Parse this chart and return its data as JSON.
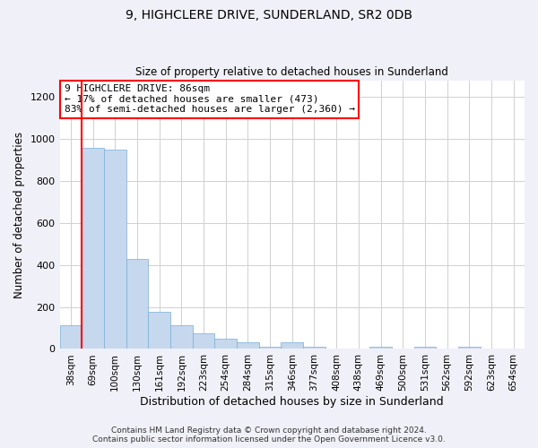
{
  "title1": "9, HIGHCLERE DRIVE, SUNDERLAND, SR2 0DB",
  "title2": "Size of property relative to detached houses in Sunderland",
  "xlabel": "Distribution of detached houses by size in Sunderland",
  "ylabel": "Number of detached properties",
  "categories": [
    "38sqm",
    "69sqm",
    "100sqm",
    "130sqm",
    "161sqm",
    "192sqm",
    "223sqm",
    "254sqm",
    "284sqm",
    "315sqm",
    "346sqm",
    "377sqm",
    "408sqm",
    "438sqm",
    "469sqm",
    "500sqm",
    "531sqm",
    "562sqm",
    "592sqm",
    "623sqm",
    "654sqm"
  ],
  "values": [
    115,
    960,
    950,
    430,
    175,
    115,
    75,
    50,
    30,
    10,
    30,
    10,
    0,
    0,
    10,
    0,
    10,
    0,
    10,
    0,
    0
  ],
  "bar_color": "#c5d8ee",
  "bar_edge_color": "#7aadd4",
  "vline_x": 0.5,
  "vline_color": "red",
  "annotation_text": "9 HIGHCLERE DRIVE: 86sqm\n← 17% of detached houses are smaller (473)\n83% of semi-detached houses are larger (2,360) →",
  "annotation_box_color": "white",
  "annotation_box_edge": "red",
  "ylim": [
    0,
    1280
  ],
  "yticks": [
    0,
    200,
    400,
    600,
    800,
    1000,
    1200
  ],
  "footer1": "Contains HM Land Registry data © Crown copyright and database right 2024.",
  "footer2": "Contains public sector information licensed under the Open Government Licence v3.0.",
  "bg_color": "#f0f0f8",
  "plot_bg_color": "#ffffff"
}
